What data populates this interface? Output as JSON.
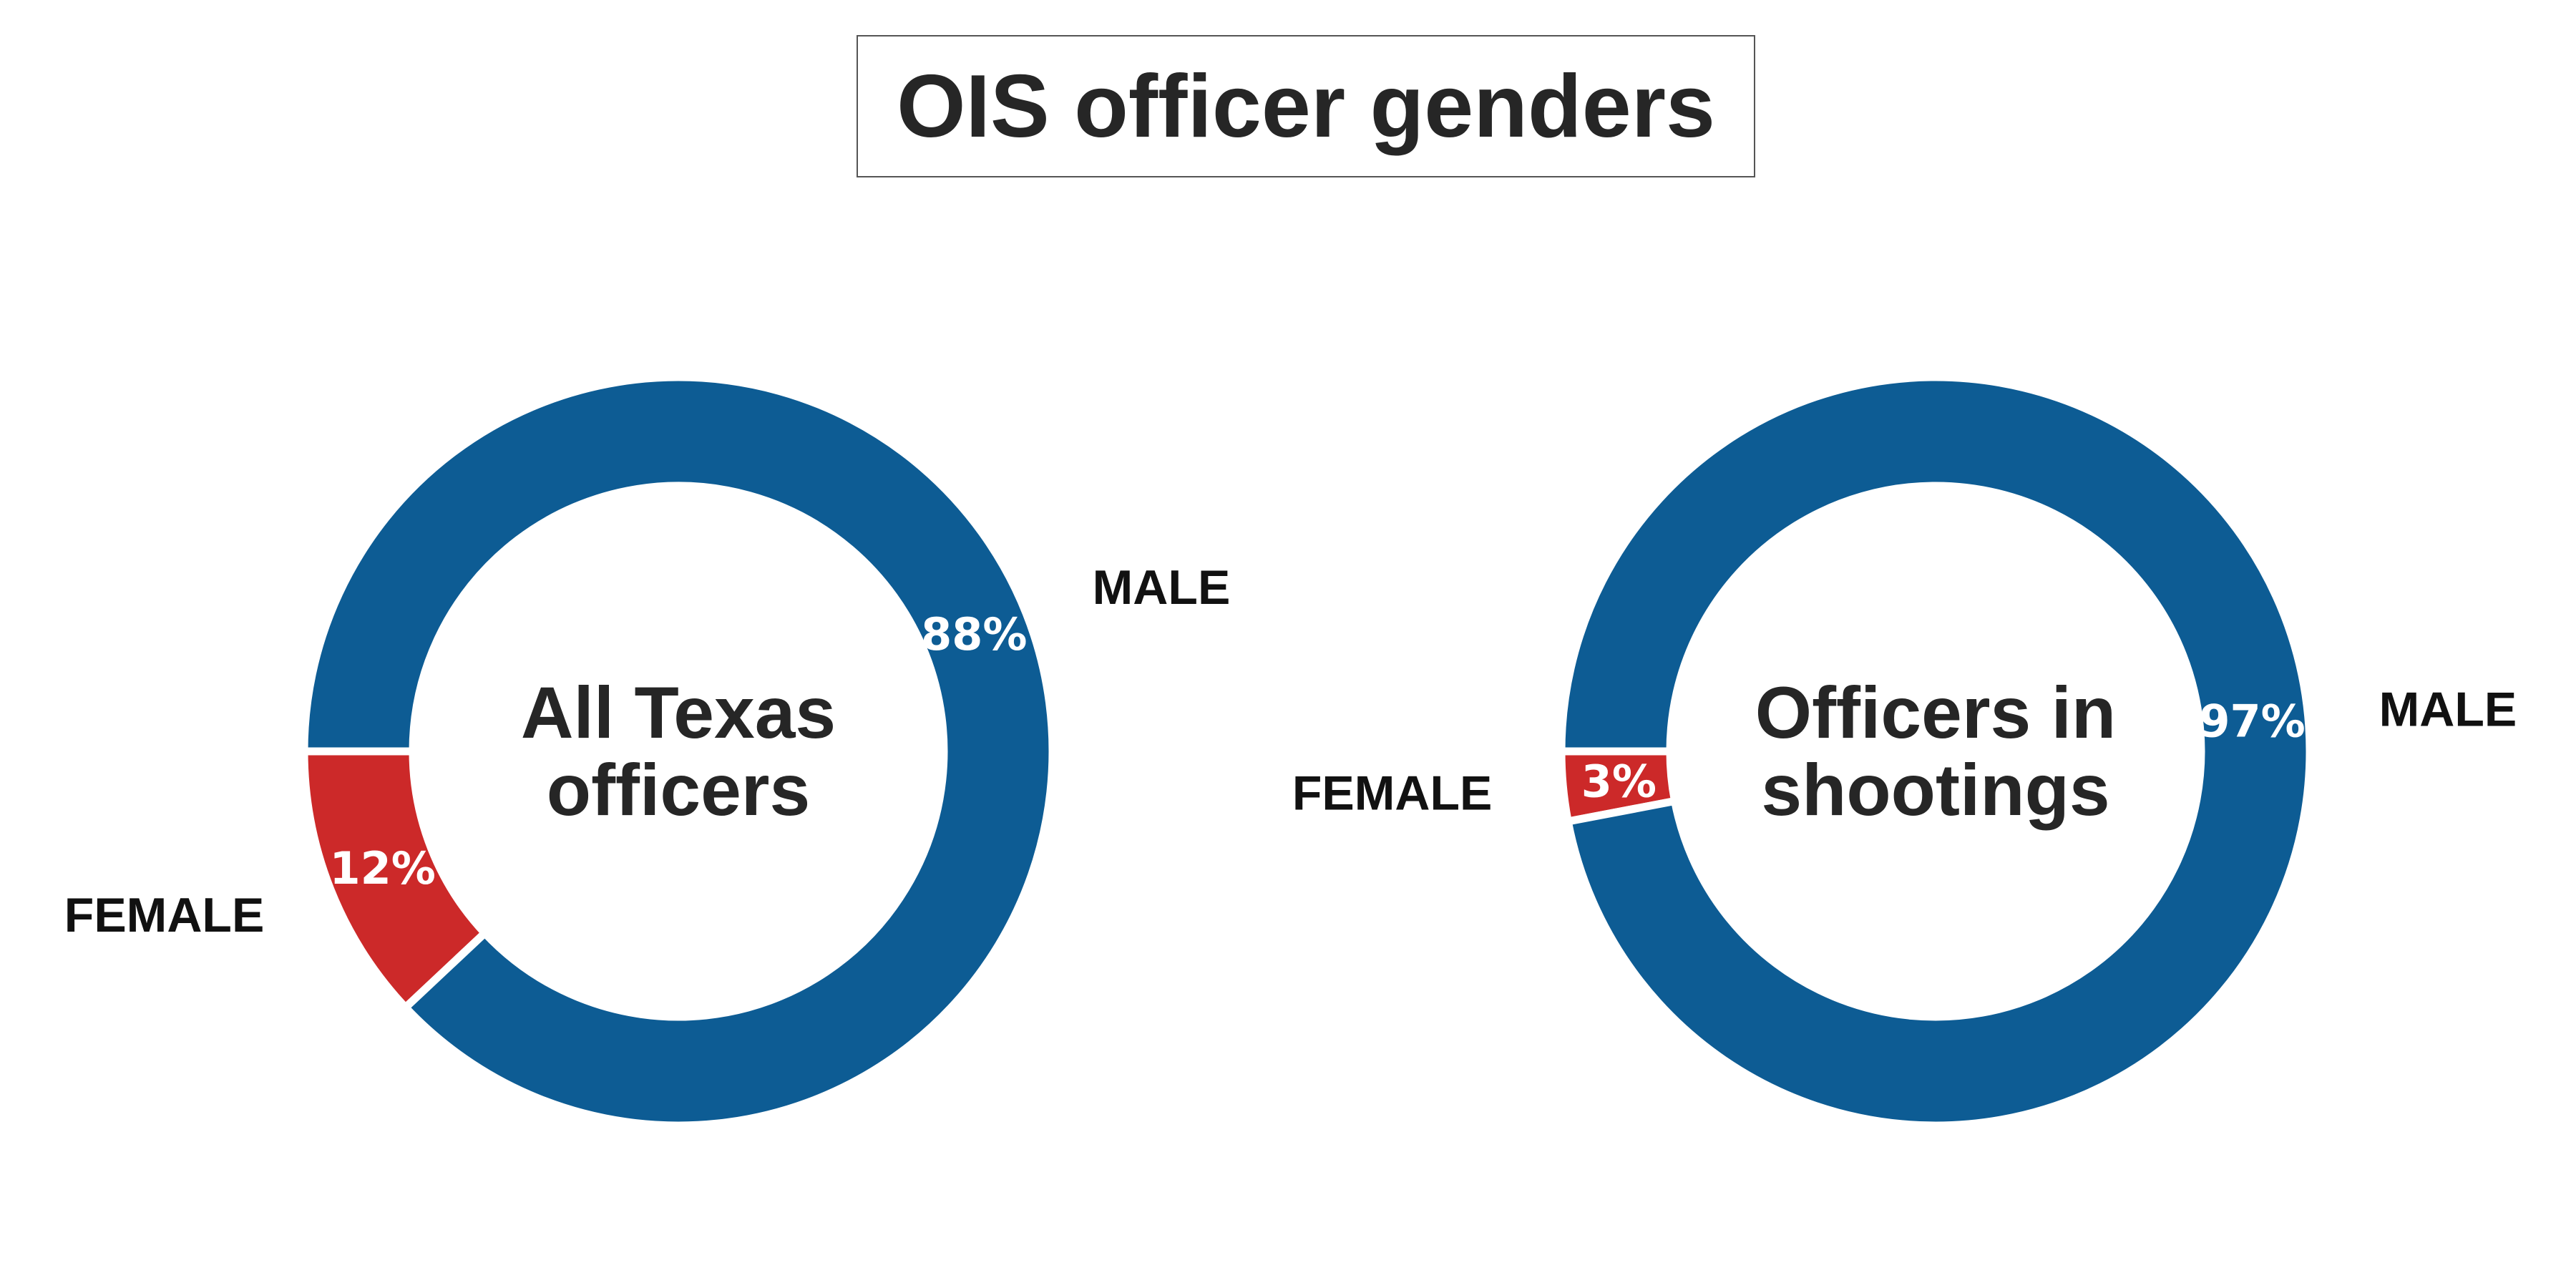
{
  "title": "OIS officer genders",
  "chart_data": [
    {
      "type": "pie",
      "center_label": [
        "All Texas",
        "officers"
      ],
      "slices": [
        {
          "label": "FEMALE",
          "value": 12,
          "display": "12%",
          "color": "#cc2929"
        },
        {
          "label": "MALE",
          "value": 88,
          "display": "88%",
          "color": "#0d5c94"
        }
      ]
    },
    {
      "type": "pie",
      "center_label": [
        "Officers in",
        "shootings"
      ],
      "slices": [
        {
          "label": "FEMALE",
          "value": 3,
          "display": "3%",
          "color": "#cc2929"
        },
        {
          "label": "MALE",
          "value": 97,
          "display": "97%",
          "color": "#0d5c94"
        }
      ]
    }
  ]
}
